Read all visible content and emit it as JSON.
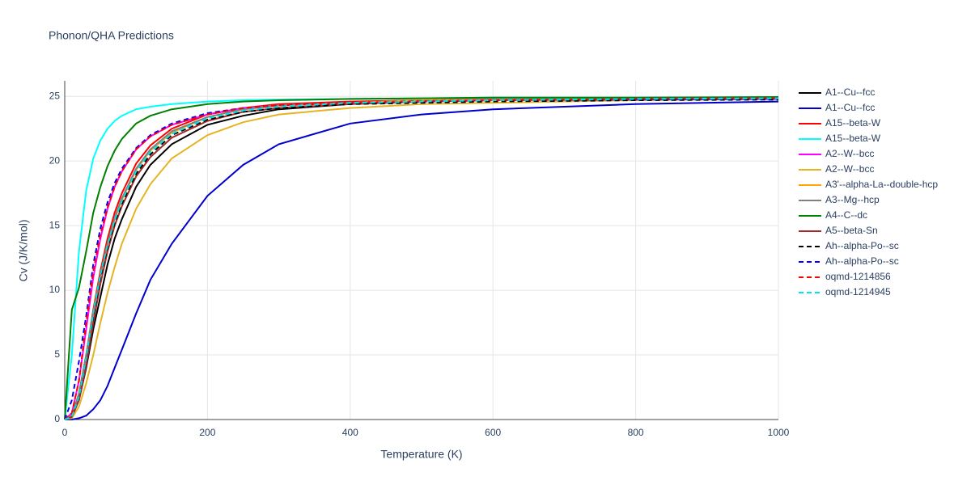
{
  "chart_data": {
    "type": "line",
    "title": "Phonon/QHA Predictions",
    "x_label": "Temperature (K)",
    "y_label": "Cv (J/K/mol)",
    "xlim": [
      0,
      1000
    ],
    "ylim": [
      0,
      26.2
    ],
    "xticks": [
      0,
      200,
      400,
      600,
      800,
      1000
    ],
    "yticks": [
      0,
      5,
      10,
      15,
      20,
      25
    ],
    "grid": true,
    "x": [
      0,
      10,
      20,
      30,
      40,
      50,
      60,
      70,
      80,
      100,
      120,
      150,
      200,
      250,
      300,
      400,
      500,
      600,
      800,
      1000
    ],
    "series": [
      {
        "name": "A1--Cu--fcc",
        "color": "#000000",
        "dashed": false,
        "values": [
          0,
          0.2,
          1.5,
          4,
          7,
          9.5,
          12,
          14,
          15.5,
          18,
          19.7,
          21.3,
          22.8,
          23.5,
          24,
          24.4,
          24.6,
          24.7,
          24.8,
          24.8
        ]
      },
      {
        "name": "A1--Cu--fcc",
        "color": "#0000cd",
        "dashed": false,
        "values": [
          0,
          0,
          0.1,
          0.3,
          0.8,
          1.5,
          2.6,
          4,
          5.4,
          8.2,
          10.8,
          13.6,
          17.3,
          19.7,
          21.3,
          22.9,
          23.6,
          24.0,
          24.4,
          24.6
        ]
      },
      {
        "name": "A15--beta-W",
        "color": "#ff0000",
        "dashed": false,
        "values": [
          0,
          0.3,
          2,
          5,
          8.5,
          11.5,
          14,
          16,
          17.5,
          19.8,
          21.2,
          22.5,
          23.6,
          24.1,
          24.4,
          24.6,
          24.7,
          24.75,
          24.8,
          24.85
        ]
      },
      {
        "name": "A15--beta-W",
        "color": "#00ffff",
        "dashed": false,
        "values": [
          0,
          5,
          13,
          17.7,
          20.2,
          21.6,
          22.5,
          23.1,
          23.5,
          24.0,
          24.2,
          24.4,
          24.6,
          24.7,
          24.75,
          24.8,
          24.85,
          24.9,
          24.9,
          24.95
        ]
      },
      {
        "name": "A2--W--bcc",
        "color": "#ff00ff",
        "dashed": false,
        "values": [
          0,
          0.5,
          3,
          7,
          11,
          14,
          16.3,
          18,
          19.2,
          20.9,
          21.9,
          22.8,
          23.6,
          24.1,
          24.3,
          24.5,
          24.6,
          24.7,
          24.8,
          24.8
        ]
      },
      {
        "name": "A2--W--bcc",
        "color": "#e6b422",
        "dashed": false,
        "values": [
          0,
          0.1,
          1,
          2.8,
          5,
          7.5,
          9.8,
          11.8,
          13.6,
          16.3,
          18.2,
          20.2,
          22.0,
          23.0,
          23.6,
          24.1,
          24.4,
          24.5,
          24.7,
          24.8
        ]
      },
      {
        "name": "A3'--alpha-La--double-hcp",
        "color": "#ffa500",
        "dashed": false,
        "values": [
          0,
          0.3,
          2,
          5,
          8.3,
          11.2,
          13.6,
          15.5,
          17,
          19.3,
          20.8,
          22.2,
          23.4,
          24,
          24.3,
          24.5,
          24.7,
          24.7,
          24.8,
          24.85
        ]
      },
      {
        "name": "A3--Mg--hcp",
        "color": "#808080",
        "dashed": false,
        "values": [
          0,
          0.3,
          2,
          5,
          8.3,
          11.2,
          13.6,
          15.6,
          17.1,
          19.4,
          20.9,
          22.3,
          23.4,
          24,
          24.3,
          24.5,
          24.6,
          24.7,
          24.8,
          24.85
        ]
      },
      {
        "name": "A4--C--dc",
        "color": "#008000",
        "dashed": false,
        "values": [
          0,
          8.5,
          10.2,
          13,
          16,
          18,
          19.6,
          20.8,
          21.7,
          22.9,
          23.5,
          24.0,
          24.4,
          24.6,
          24.7,
          24.8,
          24.85,
          24.9,
          24.9,
          24.95
        ]
      },
      {
        "name": "A5--beta-Sn",
        "color": "#a52a2a",
        "dashed": false,
        "values": [
          0,
          0.2,
          1.5,
          4.2,
          7.5,
          10.5,
          13,
          15,
          16.5,
          18.8,
          20.3,
          21.8,
          23.1,
          23.8,
          24.1,
          24.4,
          24.6,
          24.7,
          24.8,
          24.85
        ]
      },
      {
        "name": "Ah--alpha-Po--sc",
        "color": "#000000",
        "dashed": true,
        "values": [
          0,
          0.2,
          1.8,
          4.8,
          8,
          11,
          13.3,
          15.2,
          16.7,
          19,
          20.5,
          22,
          23.2,
          23.8,
          24.1,
          24.4,
          24.5,
          24.6,
          24.7,
          24.75
        ]
      },
      {
        "name": "Ah--alpha-Po--sc",
        "color": "#0000ff",
        "dashed": true,
        "values": [
          0,
          1.5,
          4.5,
          8,
          12,
          14.8,
          16.8,
          18.3,
          19.4,
          21,
          22,
          22.9,
          23.7,
          24.1,
          24.3,
          24.5,
          24.6,
          24.7,
          24.75,
          24.8
        ]
      },
      {
        "name": "oqmd-1214856",
        "color": "#ff0000",
        "dashed": true,
        "values": [
          0,
          0.5,
          3,
          7.5,
          11.5,
          14.3,
          16.4,
          18,
          19.2,
          20.9,
          21.9,
          22.8,
          23.6,
          24.1,
          24.3,
          24.5,
          24.65,
          24.7,
          24.8,
          24.85
        ]
      },
      {
        "name": "oqmd-1214945",
        "color": "#00e5e5",
        "dashed": true,
        "values": [
          0,
          0.2,
          1.8,
          4.8,
          8.2,
          11.2,
          13.5,
          15.4,
          16.9,
          19.2,
          20.7,
          22.1,
          23.3,
          23.9,
          24.2,
          24.5,
          24.6,
          24.7,
          24.8,
          24.85
        ]
      }
    ]
  }
}
